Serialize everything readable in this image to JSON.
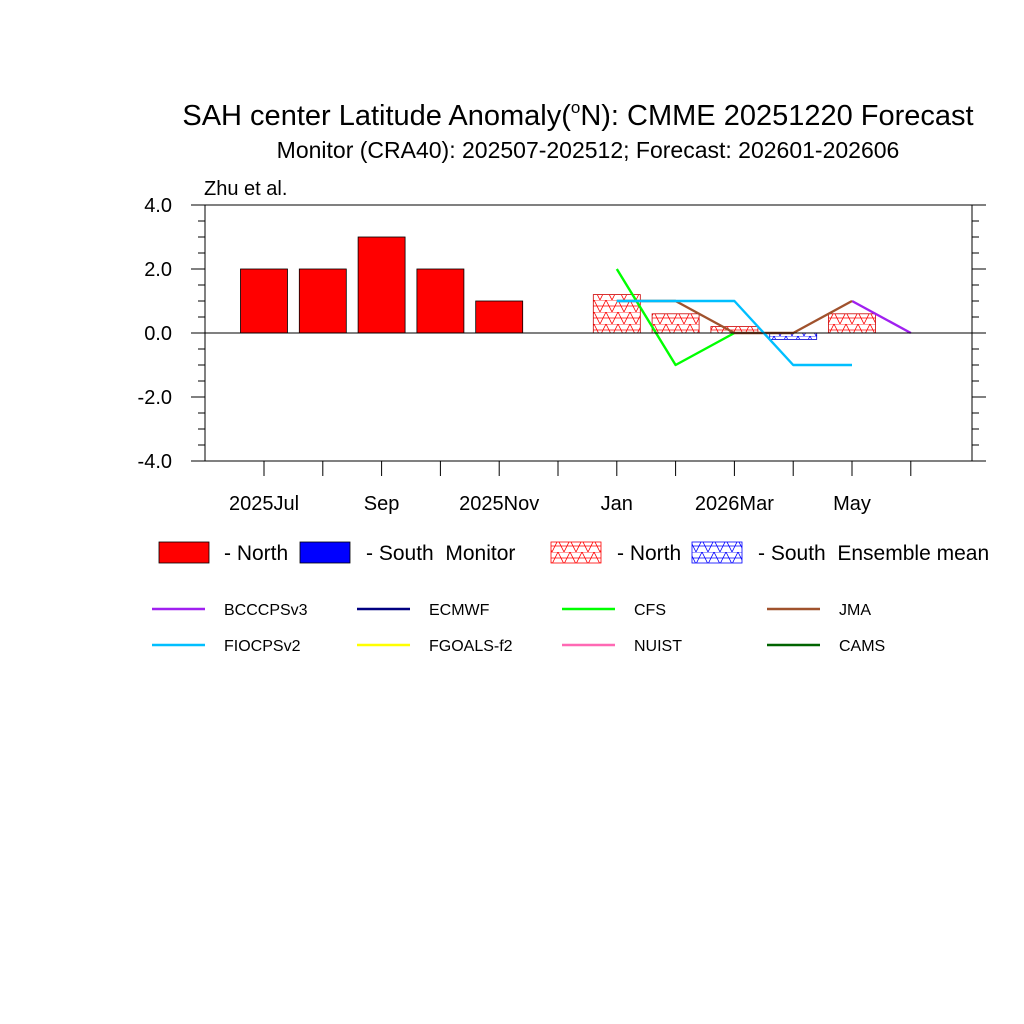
{
  "chart_data": {
    "type": "bar",
    "title": "SAH center Latitude Anomaly(",
    "title_deg": "o",
    "title_tail": "N): CMME 20251220 Forecast",
    "subtitle": "Monitor (CRA40): 202507-202512; Forecast: 202601-202606",
    "annotation": "Zhu et al.",
    "ylim": [
      -4,
      4
    ],
    "y_ticks": [
      {
        "value": 4,
        "label": "4.0"
      },
      {
        "value": 2,
        "label": "2.0"
      },
      {
        "value": 0,
        "label": "0.0"
      },
      {
        "value": -2,
        "label": "-2.0"
      },
      {
        "value": -4,
        "label": "-4.0"
      }
    ],
    "x_tick_labels": [
      "2025Jul",
      "Sep",
      "2025Nov",
      "Jan",
      "2026Mar",
      "May"
    ],
    "x_tick_label_index": [
      0,
      2,
      4,
      6,
      8,
      10
    ],
    "months": [
      "2025-07",
      "2025-08",
      "2025-09",
      "2025-10",
      "2025-11",
      "2025-12",
      "2026-01",
      "2026-02",
      "2026-03",
      "2026-04",
      "2026-05",
      "2026-06"
    ],
    "monitor_values": [
      2,
      2,
      3,
      2,
      1
    ],
    "ensemble_mean": [
      {
        "index": 6,
        "value": 1.2
      },
      {
        "index": 7,
        "value": 0.6
      },
      {
        "index": 8,
        "value": 0.2
      },
      {
        "index": 9,
        "value": -0.2
      },
      {
        "index": 10,
        "value": 0.6
      }
    ],
    "series": [
      {
        "name": "BCCCPSv3",
        "color": "#a020f0",
        "values": [
          {
            "index": 10,
            "value": 1
          },
          {
            "index": 11,
            "value": 0
          }
        ]
      },
      {
        "name": "CFS",
        "color": "#00ff00",
        "values": [
          {
            "index": 6,
            "value": 2
          },
          {
            "index": 7,
            "value": -1
          },
          {
            "index": 8,
            "value": 0
          }
        ]
      },
      {
        "name": "JMA",
        "color": "#a0522d",
        "values": [
          {
            "index": 6,
            "value": 1
          },
          {
            "index": 7,
            "value": 1
          },
          {
            "index": 8,
            "value": 0
          },
          {
            "index": 9,
            "value": 0
          },
          {
            "index": 10,
            "value": 1
          }
        ]
      },
      {
        "name": "FIOCPSv2",
        "color": "#00bfff",
        "values": [
          {
            "index": 6,
            "value": 1
          },
          {
            "index": 7,
            "value": 1
          },
          {
            "index": 8,
            "value": 1
          },
          {
            "index": 9,
            "value": -1
          },
          {
            "index": 10,
            "value": -1
          }
        ]
      }
    ],
    "legend_top": [
      {
        "label": "- North",
        "color": "#ff0000",
        "pattern": "solid"
      },
      {
        "label": "- South  Monitor",
        "color": "#0000ff",
        "pattern": "solid"
      },
      {
        "label": "- North",
        "color": "#ff0000",
        "pattern": "hatch"
      },
      {
        "label": "- South  Ensemble mean",
        "color": "#0000ff",
        "pattern": "hatch"
      }
    ],
    "legend_models": [
      {
        "name": "BCCCPSv3",
        "color": "#a020f0"
      },
      {
        "name": "ECMWF",
        "color": "#000080"
      },
      {
        "name": "CFS",
        "color": "#00ff00"
      },
      {
        "name": "JMA",
        "color": "#a0522d"
      },
      {
        "name": "FIOCPSv2",
        "color": "#00bfff"
      },
      {
        "name": "FGOALS-f2",
        "color": "#ffff00"
      },
      {
        "name": "NUIST",
        "color": "#ff69b4"
      },
      {
        "name": "CAMS",
        "color": "#006400"
      }
    ]
  }
}
